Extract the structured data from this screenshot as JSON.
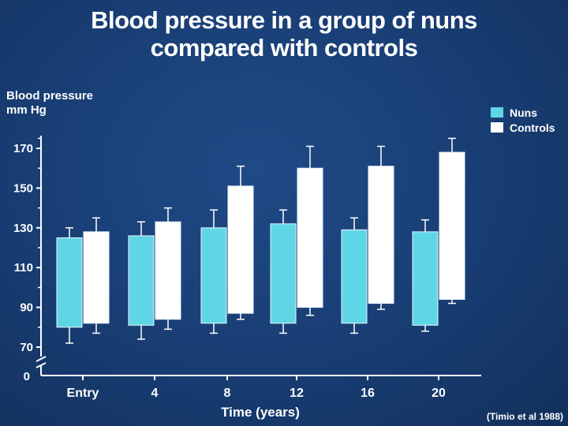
{
  "chart_data": {
    "type": "bar",
    "title_line1": "Blood pressure in a group of nuns",
    "title_line2": "compared with controls",
    "ylabel_line1": "Blood pressure",
    "ylabel_line2": "mm Hg",
    "xlabel": "Time (years)",
    "categories": [
      "Entry",
      "4",
      "8",
      "12",
      "16",
      "20"
    ],
    "yticks": [
      70,
      90,
      110,
      130,
      150,
      170
    ],
    "zero_label": "0",
    "ylim": [
      62,
      178
    ],
    "series": [
      {
        "name": "Nuns",
        "color": "#5fd6e6",
        "low": [
          80,
          81,
          82,
          82,
          82,
          81
        ],
        "high": [
          125,
          126,
          130,
          132,
          129,
          128
        ],
        "err_low": [
          72,
          74,
          77,
          77,
          77,
          78
        ],
        "err_high": [
          130,
          133,
          139,
          139,
          135,
          134
        ]
      },
      {
        "name": "Controls",
        "color": "#ffffff",
        "low": [
          82,
          84,
          87,
          90,
          92,
          94
        ],
        "high": [
          128,
          133,
          151,
          160,
          161,
          168
        ],
        "err_low": [
          77,
          79,
          84,
          86,
          89,
          92
        ],
        "err_high": [
          135,
          140,
          161,
          171,
          171,
          175
        ]
      }
    ],
    "source": "(Timio et al 1988)"
  }
}
